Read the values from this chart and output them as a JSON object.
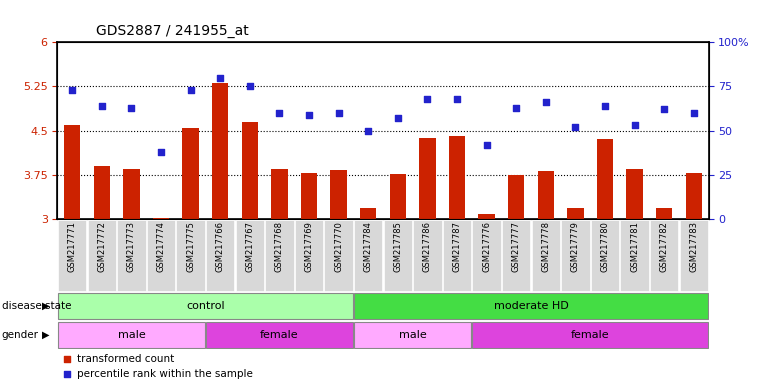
{
  "title": "GDS2887 / 241955_at",
  "samples": [
    "GSM217771",
    "GSM217772",
    "GSM217773",
    "GSM217774",
    "GSM217775",
    "GSM217766",
    "GSM217767",
    "GSM217768",
    "GSM217769",
    "GSM217770",
    "GSM217784",
    "GSM217785",
    "GSM217786",
    "GSM217787",
    "GSM217776",
    "GSM217777",
    "GSM217778",
    "GSM217779",
    "GSM217780",
    "GSM217781",
    "GSM217782",
    "GSM217783"
  ],
  "bar_values": [
    4.6,
    3.9,
    3.85,
    3.02,
    4.55,
    5.3,
    4.65,
    3.85,
    3.78,
    3.83,
    3.18,
    3.77,
    4.38,
    4.41,
    3.08,
    3.75,
    3.82,
    3.18,
    4.35,
    3.84,
    3.18,
    3.78
  ],
  "dot_values": [
    73,
    64,
    63,
    38,
    73,
    80,
    75,
    60,
    59,
    60,
    50,
    57,
    68,
    68,
    42,
    63,
    66,
    52,
    64,
    53,
    62,
    60
  ],
  "ylim_left": [
    3,
    6
  ],
  "ylim_right": [
    0,
    100
  ],
  "yticks_left": [
    3,
    3.75,
    4.5,
    5.25,
    6
  ],
  "yticks_right": [
    0,
    25,
    50,
    75,
    100
  ],
  "ytick_labels_left": [
    "3",
    "3.75",
    "4.5",
    "5.25",
    "6"
  ],
  "ytick_labels_right": [
    "0",
    "25",
    "50",
    "75",
    "100%"
  ],
  "hlines": [
    3.75,
    4.5,
    5.25
  ],
  "bar_color": "#cc2200",
  "dot_color": "#2222cc",
  "bar_width": 0.55,
  "disease_state_groups": [
    {
      "label": "control",
      "start": 0,
      "end": 9,
      "color": "#aaffaa"
    },
    {
      "label": "moderate HD",
      "start": 10,
      "end": 21,
      "color": "#44dd44"
    }
  ],
  "gender_groups": [
    {
      "label": "male",
      "start": 0,
      "end": 4,
      "color": "#ffaaff"
    },
    {
      "label": "female",
      "start": 5,
      "end": 9,
      "color": "#dd44dd"
    },
    {
      "label": "male",
      "start": 10,
      "end": 13,
      "color": "#ffaaff"
    },
    {
      "label": "female",
      "start": 14,
      "end": 21,
      "color": "#dd44dd"
    }
  ],
  "tick_color_left": "#cc2200",
  "tick_color_right": "#2222cc",
  "label_fontsize": 7.5,
  "tick_fontsize": 8
}
